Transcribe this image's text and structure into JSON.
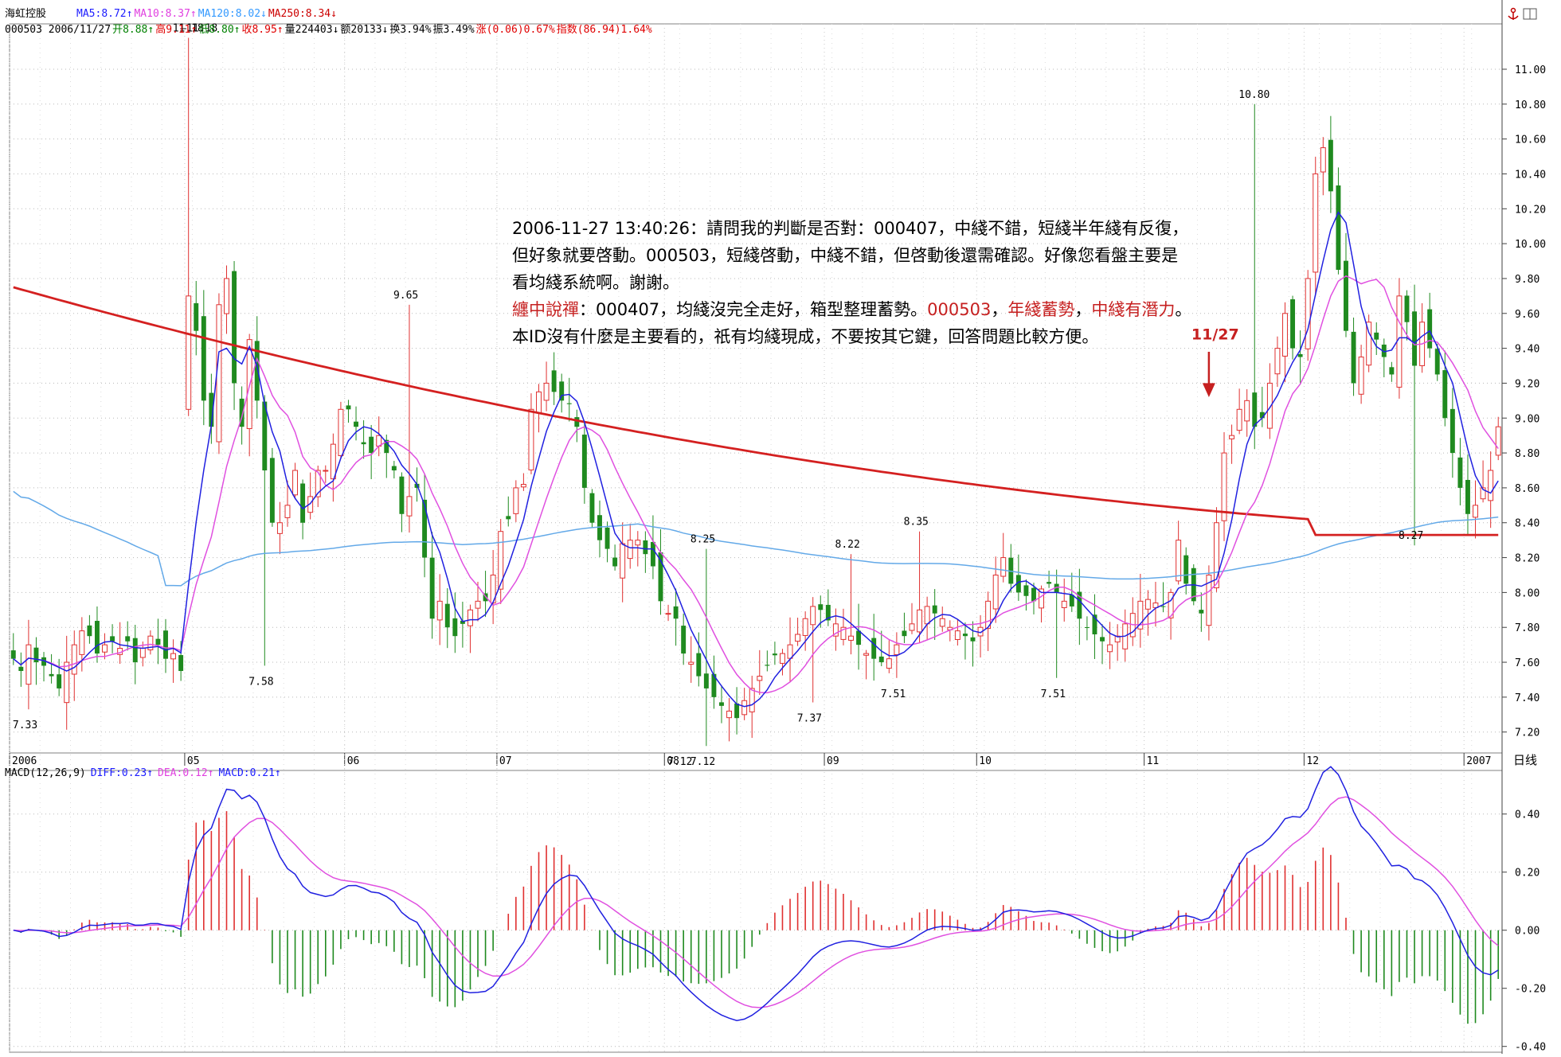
{
  "header": {
    "stock_name": "海虹控股",
    "ma_items": [
      {
        "label": "MA5:8.72↑",
        "color": "#1c1cff"
      },
      {
        "label": "MA10:8.37↑",
        "color": "#e040e0"
      },
      {
        "label": "MA120:8.02↓",
        "color": "#3399ff"
      },
      {
        "label": "MA250:8.34↓",
        "color": "#cc0000"
      }
    ],
    "info_items": [
      {
        "label": "000503 2006/11/27",
        "color": "#000000"
      },
      {
        "label": "开8.88↑",
        "color": "#008000"
      },
      {
        "label": "高9.11↑",
        "color": "#e00000"
      },
      {
        "label": "低8.80↑",
        "color": "#008000"
      },
      {
        "label": "收8.95↑",
        "color": "#e00000"
      },
      {
        "label": "量224403↓",
        "color": "#000000"
      },
      {
        "label": "额20133↓",
        "color": "#000000"
      },
      {
        "label": "换3.94%",
        "color": "#000000"
      },
      {
        "label": "振3.49%",
        "color": "#000000"
      },
      {
        "label": "涨(0.06)0.67%",
        "color": "#e00000"
      },
      {
        "label": "指数(86.94)1.64%",
        "color": "#e00000"
      }
    ],
    "period_label": "日线"
  },
  "annotation": {
    "lines": [
      [
        {
          "text": "2006-11-27 13:40:26：請問我的判斷是否對：000407，中綫不錯，短綫半年綫有反復，",
          "red": false
        }
      ],
      [
        {
          "text": "但好象就要啓動。000503，短綫啓動，中綫不錯，但啓動後還需確認。好像您看盤主要是",
          "red": false
        }
      ],
      [
        {
          "text": "看均綫系統啊。謝謝。",
          "red": false
        }
      ],
      [
        {
          "text": "纏中說禪",
          "red": true
        },
        {
          "text": "：000407，均綫沒完全走好，箱型整理蓄勢。",
          "red": false
        },
        {
          "text": "000503",
          "red": true
        },
        {
          "text": "，",
          "red": false
        },
        {
          "text": "年綫蓄勢",
          "red": true
        },
        {
          "text": "，",
          "red": false
        },
        {
          "text": "中綫有潛力",
          "red": true
        },
        {
          "text": "。",
          "red": false
        }
      ],
      [
        {
          "text": "本ID沒有什麼是主要看的，祇有均綫現成，不要按其它鍵，回答問題比較方便。",
          "red": false
        }
      ]
    ],
    "marker_label": "11/27"
  },
  "chart_data": [
    {
      "type": "candlestick",
      "title": "",
      "ylim": [
        7.08,
        11.26
      ],
      "y_ticks": [
        "7.20",
        "7.40",
        "7.60",
        "7.80",
        "8.00",
        "8.20",
        "8.40",
        "8.60",
        "8.80",
        "9.00",
        "9.20",
        "9.40",
        "9.60",
        "9.80",
        "10.00",
        "10.20",
        "10.40",
        "10.60",
        "10.80",
        "11.00"
      ],
      "x_ticks": [
        {
          "label": "2006",
          "bar": 0
        },
        {
          "label": "05",
          "bar": 23
        },
        {
          "label": "06",
          "bar": 44
        },
        {
          "label": "07",
          "bar": 64
        },
        {
          "label": "08",
          "bar": 86
        },
        {
          "label": "09",
          "bar": 107
        },
        {
          "label": "10",
          "bar": 127
        },
        {
          "label": "11",
          "bar": 149
        },
        {
          "label": "12",
          "bar": 170
        },
        {
          "label": "2007",
          "bar": 191
        }
      ],
      "close": [
        7.62,
        7.55,
        7.7,
        7.6,
        7.58,
        7.52,
        7.45,
        7.6,
        7.7,
        7.78,
        7.75,
        7.65,
        7.7,
        7.72,
        7.68,
        7.72,
        7.6,
        7.68,
        7.75,
        7.7,
        7.62,
        7.65,
        7.55,
        9.7,
        9.5,
        9.1,
        8.95,
        9.65,
        9.8,
        9.2,
        8.95,
        9.45,
        9.1,
        8.7,
        8.4,
        8.4,
        8.5,
        8.7,
        8.4,
        8.55,
        8.7,
        8.7,
        8.85,
        9.05,
        9.05,
        8.95,
        8.85,
        8.8,
        8.9,
        8.8,
        8.7,
        8.45,
        8.55,
        8.6,
        8.2,
        7.85,
        7.95,
        7.8,
        7.75,
        7.82,
        7.9,
        7.95,
        7.95,
        8.1,
        8.35,
        8.42,
        8.6,
        8.62,
        9.05,
        9.15,
        9.2,
        9.15,
        9.1,
        9.08,
        8.95,
        8.6,
        8.4,
        8.3,
        8.25,
        8.15,
        8.28,
        8.3,
        8.3,
        8.22,
        8.15,
        7.95,
        7.88,
        7.85,
        7.65,
        7.6,
        7.52,
        7.45,
        7.4,
        7.35,
        7.32,
        7.28,
        7.38,
        7.45,
        7.52,
        7.58,
        7.64,
        7.65,
        7.7,
        7.76,
        7.85,
        7.92,
        7.9,
        7.84,
        7.82,
        7.8,
        7.75,
        7.7,
        7.65,
        7.62,
        7.6,
        7.62,
        7.7,
        7.75,
        7.82,
        7.9,
        7.92,
        7.88,
        7.85,
        7.8,
        7.78,
        7.75,
        7.72,
        7.8,
        7.95,
        8.1,
        8.2,
        8.05,
        8.0,
        7.98,
        7.95,
        8.02,
        8.05,
        8.0,
        7.95,
        7.92,
        7.85,
        7.8,
        7.76,
        7.72,
        7.7,
        7.75,
        7.82,
        7.88,
        7.95,
        7.96,
        7.94,
        7.92,
        8.0,
        8.3,
        8.05,
        7.95,
        7.88,
        8.1,
        8.4,
        8.8,
        8.9,
        9.05,
        9.1,
        8.95,
        9.0,
        9.2,
        9.4,
        9.6,
        9.4,
        9.35,
        9.8,
        10.4,
        10.55,
        10.3,
        9.85,
        9.5,
        9.2,
        9.35,
        9.55,
        9.45,
        9.35,
        9.25,
        9.7,
        9.55,
        9.3,
        9.55,
        9.4,
        9.25,
        9.0,
        8.8,
        8.6,
        8.45,
        8.5,
        8.6,
        8.7,
        8.95
      ],
      "ma5_line": "close-price 5-day moving average",
      "labels": [
        {
          "text": "11.18",
          "bar": 23,
          "value": 11.18
        },
        {
          "text": "—11.18",
          "bar": 24,
          "value": 11.18
        },
        {
          "text": "7.33",
          "bar": 2,
          "value": 7.33
        },
        {
          "text": "7.58",
          "bar": 33,
          "value": 7.58
        },
        {
          "text": "9.65",
          "bar": 52,
          "value": 9.65
        },
        {
          "text": "8.25",
          "bar": 91,
          "value": 8.25
        },
        {
          "text": "7.12",
          "bar": 91,
          "value": 7.12
        },
        {
          "text": "7.12",
          "bar": 88,
          "value": 7.12
        },
        {
          "text": "7.37",
          "bar": 105,
          "value": 7.37
        },
        {
          "text": "8.22",
          "bar": 110,
          "value": 8.22
        },
        {
          "text": "8.35",
          "bar": 119,
          "value": 8.35
        },
        {
          "text": "7.51",
          "bar": 116,
          "value": 7.51
        },
        {
          "text": "7.51",
          "bar": 137,
          "value": 7.51
        },
        {
          "text": "10.80",
          "bar": 163,
          "value": 10.8
        },
        {
          "text": "8.27",
          "bar": 184,
          "value": 8.27
        }
      ]
    },
    {
      "type": "macd",
      "title": "MACD(12,26,9)",
      "legend": [
        {
          "label": "MACD(12,26,9)",
          "color": "#000000"
        },
        {
          "label": "DIFF:0.23↑",
          "color": "#1c1cff"
        },
        {
          "label": "DEA:0.12↑",
          "color": "#e040e0"
        },
        {
          "label": "MACD:0.21↑",
          "color": "#1c1cff"
        }
      ],
      "ylim": [
        -0.42,
        0.55
      ],
      "y_ticks": [
        "-0.40",
        "-0.20",
        "0.00",
        "0.20",
        "0.40"
      ]
    }
  ]
}
